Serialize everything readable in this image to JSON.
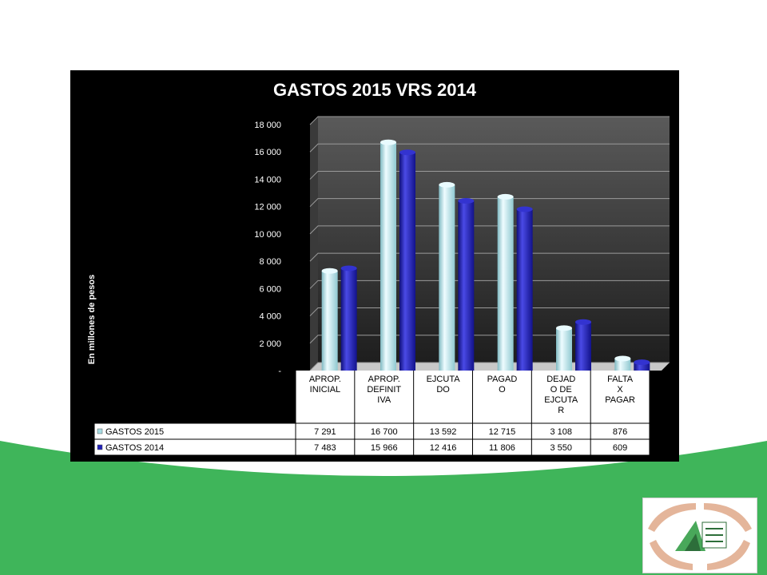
{
  "colors": {
    "background": "#ffffff",
    "green": "#3fb55a",
    "panel": "#000000",
    "series_2015": "#bfe9ee",
    "series_2014": "#1f1fb0"
  },
  "chart_data": {
    "type": "bar",
    "title": "GASTOS 2015 VRS 2014",
    "ylabel": "En millones de pesos",
    "xlabel": "",
    "ylim": [
      0,
      18000
    ],
    "yticks": [
      "-",
      "2 000",
      "4 000",
      "6 000",
      "8 000",
      "10 000",
      "12 000",
      "14 000",
      "16 000",
      "18 000"
    ],
    "grid": true,
    "legend_placement": "data-table",
    "categories": [
      "APROP. INICIAL",
      "APROP. DEFINITIVA",
      "EJCUTADO",
      "PAGADO",
      "DEJADO DE EJCUTAR",
      "FALTA X PAGAR"
    ],
    "category_lines": [
      [
        "APROP.",
        "INICIAL"
      ],
      [
        "APROP.",
        "DEFINIT",
        "IVA"
      ],
      [
        "EJCUTA",
        "DO"
      ],
      [
        "PAGAD",
        "O"
      ],
      [
        "DEJAD",
        "O DE",
        "EJCUTA",
        "R"
      ],
      [
        "FALTA",
        "X",
        "PAGAR"
      ]
    ],
    "series": [
      {
        "name": "GASTOS 2015",
        "values": [
          7291,
          16700,
          13592,
          12715,
          3108,
          876
        ],
        "labels": [
          "7 291",
          "16 700",
          "13 592",
          "12 715",
          "3 108",
          "876"
        ]
      },
      {
        "name": "GASTOS 2014",
        "values": [
          7483,
          15966,
          12416,
          11806,
          3550,
          609
        ],
        "labels": [
          "7 483",
          "15 966",
          "12 416",
          "11 806",
          "3 550",
          "609"
        ]
      }
    ]
  }
}
